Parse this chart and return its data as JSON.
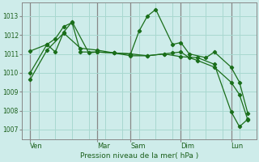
{
  "background_color": "#ceecea",
  "grid_color": "#a8d8d0",
  "line_color": "#1a6e1a",
  "marker_color": "#1a6e1a",
  "xlabel": "Pression niveau de la mer( hPa )",
  "ylim": [
    1006.5,
    1013.7
  ],
  "yticks": [
    1007,
    1008,
    1009,
    1010,
    1011,
    1012,
    1013
  ],
  "xlim": [
    0,
    28
  ],
  "day_labels": [
    "Ven",
    "Mar",
    "Sam",
    "Dim",
    "Lun"
  ],
  "day_positions": [
    1,
    9,
    13,
    19,
    25
  ],
  "series1_x": [
    1,
    3,
    4,
    5,
    6,
    7,
    9,
    11,
    13,
    15,
    17,
    18,
    19,
    20,
    21,
    23,
    25,
    26,
    27
  ],
  "series1_y": [
    1011.15,
    1011.5,
    1011.8,
    1012.45,
    1012.65,
    1011.1,
    1011.1,
    1011.05,
    1011.0,
    1010.9,
    1011.0,
    1011.05,
    1011.1,
    1010.8,
    1010.65,
    1010.3,
    1009.5,
    1008.85,
    1007.5
  ],
  "series2_x": [
    1,
    3,
    4,
    5,
    6,
    8,
    9,
    11,
    13,
    14,
    15,
    16,
    18,
    19,
    20,
    22,
    23,
    25,
    26,
    27
  ],
  "series2_y": [
    1010.0,
    1011.5,
    1011.1,
    1012.15,
    1012.7,
    1011.05,
    1011.1,
    1011.05,
    1011.0,
    1012.2,
    1013.0,
    1013.35,
    1011.5,
    1011.6,
    1011.0,
    1010.8,
    1011.1,
    1010.3,
    1009.5,
    1007.85
  ],
  "series3_x": [
    1,
    3,
    5,
    7,
    9,
    11,
    13,
    15,
    17,
    19,
    21,
    23,
    25,
    26,
    27
  ],
  "series3_y": [
    1009.65,
    1011.2,
    1012.1,
    1011.3,
    1011.2,
    1011.05,
    1010.9,
    1010.9,
    1011.0,
    1010.85,
    1010.8,
    1010.45,
    1007.95,
    1007.15,
    1007.55
  ]
}
